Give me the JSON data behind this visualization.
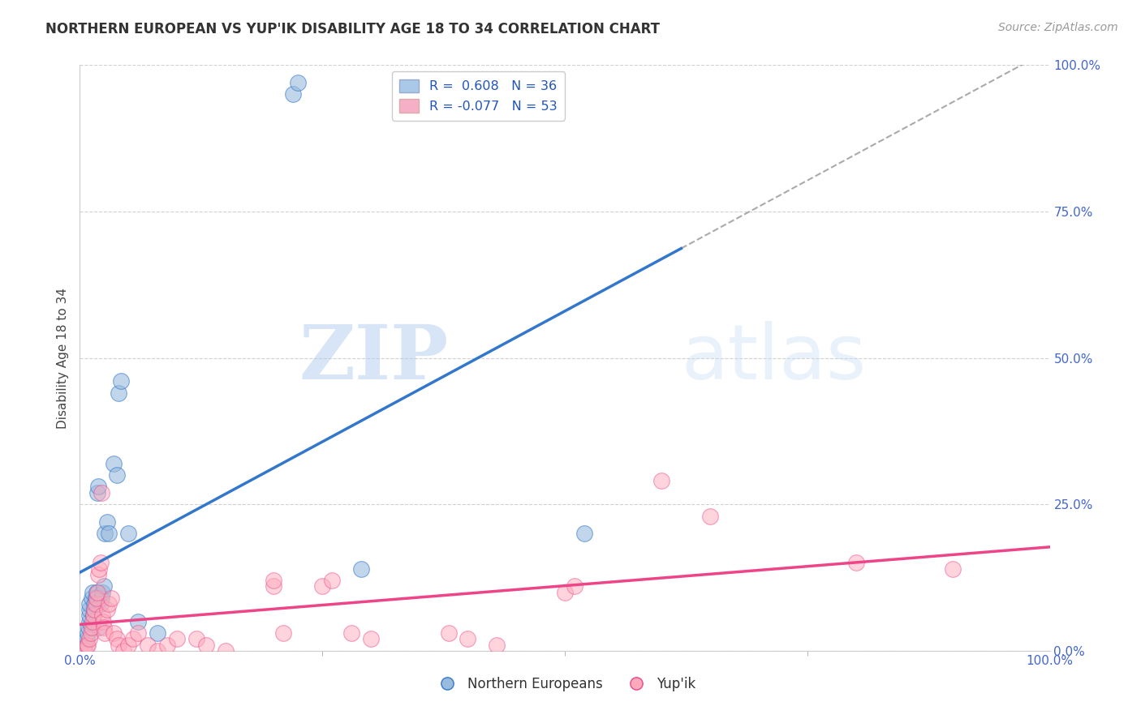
{
  "title": "NORTHERN EUROPEAN VS YUP'IK DISABILITY AGE 18 TO 34 CORRELATION CHART",
  "source": "Source: ZipAtlas.com",
  "ylabel": "Disability Age 18 to 34",
  "xlim": [
    0,
    1.0
  ],
  "ylim": [
    0,
    1.0
  ],
  "ytick_labels": [
    "0.0%",
    "25.0%",
    "50.0%",
    "75.0%",
    "100.0%"
  ],
  "ytick_positions": [
    0.0,
    0.25,
    0.5,
    0.75,
    1.0
  ],
  "grid_color": "#cccccc",
  "background_color": "#ffffff",
  "blue_color": "#99bbdd",
  "pink_color": "#ffaabb",
  "blue_line_color": "#3377cc",
  "pink_line_color": "#ee4488",
  "tick_color": "#4466cc",
  "legend_R_blue": "R =  0.608",
  "legend_N_blue": "N = 36",
  "legend_R_pink": "R = -0.077",
  "legend_N_pink": "N = 53",
  "watermark_zip": "ZIP",
  "watermark_atlas": "atlas",
  "blue_scatter": [
    [
      0.005,
      0.01
    ],
    [
      0.007,
      0.02
    ],
    [
      0.008,
      0.03
    ],
    [
      0.009,
      0.04
    ],
    [
      0.01,
      0.05
    ],
    [
      0.01,
      0.06
    ],
    [
      0.01,
      0.07
    ],
    [
      0.01,
      0.08
    ],
    [
      0.012,
      0.09
    ],
    [
      0.013,
      0.1
    ],
    [
      0.014,
      0.06
    ],
    [
      0.015,
      0.07
    ],
    [
      0.015,
      0.08
    ],
    [
      0.016,
      0.09
    ],
    [
      0.017,
      0.1
    ],
    [
      0.018,
      0.27
    ],
    [
      0.019,
      0.28
    ],
    [
      0.02,
      0.04
    ],
    [
      0.021,
      0.08
    ],
    [
      0.022,
      0.09
    ],
    [
      0.023,
      0.1
    ],
    [
      0.025,
      0.11
    ],
    [
      0.026,
      0.2
    ],
    [
      0.028,
      0.22
    ],
    [
      0.03,
      0.2
    ],
    [
      0.035,
      0.32
    ],
    [
      0.038,
      0.3
    ],
    [
      0.04,
      0.44
    ],
    [
      0.042,
      0.46
    ],
    [
      0.05,
      0.2
    ],
    [
      0.06,
      0.05
    ],
    [
      0.08,
      0.03
    ],
    [
      0.22,
      0.95
    ],
    [
      0.225,
      0.97
    ],
    [
      0.29,
      0.14
    ],
    [
      0.52,
      0.2
    ]
  ],
  "pink_scatter": [
    [
      0.005,
      0.0
    ],
    [
      0.007,
      0.01
    ],
    [
      0.008,
      0.01
    ],
    [
      0.01,
      0.02
    ],
    [
      0.011,
      0.03
    ],
    [
      0.012,
      0.04
    ],
    [
      0.013,
      0.05
    ],
    [
      0.014,
      0.06
    ],
    [
      0.015,
      0.07
    ],
    [
      0.016,
      0.08
    ],
    [
      0.017,
      0.09
    ],
    [
      0.018,
      0.1
    ],
    [
      0.019,
      0.13
    ],
    [
      0.02,
      0.14
    ],
    [
      0.021,
      0.15
    ],
    [
      0.022,
      0.27
    ],
    [
      0.023,
      0.06
    ],
    [
      0.024,
      0.05
    ],
    [
      0.025,
      0.04
    ],
    [
      0.026,
      0.03
    ],
    [
      0.028,
      0.07
    ],
    [
      0.03,
      0.08
    ],
    [
      0.032,
      0.09
    ],
    [
      0.035,
      0.03
    ],
    [
      0.038,
      0.02
    ],
    [
      0.04,
      0.01
    ],
    [
      0.045,
      0.0
    ],
    [
      0.05,
      0.01
    ],
    [
      0.055,
      0.02
    ],
    [
      0.06,
      0.03
    ],
    [
      0.07,
      0.01
    ],
    [
      0.08,
      0.0
    ],
    [
      0.09,
      0.01
    ],
    [
      0.1,
      0.02
    ],
    [
      0.12,
      0.02
    ],
    [
      0.13,
      0.01
    ],
    [
      0.15,
      0.0
    ],
    [
      0.2,
      0.11
    ],
    [
      0.2,
      0.12
    ],
    [
      0.21,
      0.03
    ],
    [
      0.25,
      0.11
    ],
    [
      0.26,
      0.12
    ],
    [
      0.28,
      0.03
    ],
    [
      0.3,
      0.02
    ],
    [
      0.38,
      0.03
    ],
    [
      0.4,
      0.02
    ],
    [
      0.43,
      0.01
    ],
    [
      0.5,
      0.1
    ],
    [
      0.51,
      0.11
    ],
    [
      0.6,
      0.29
    ],
    [
      0.65,
      0.23
    ],
    [
      0.8,
      0.15
    ],
    [
      0.9,
      0.14
    ]
  ]
}
